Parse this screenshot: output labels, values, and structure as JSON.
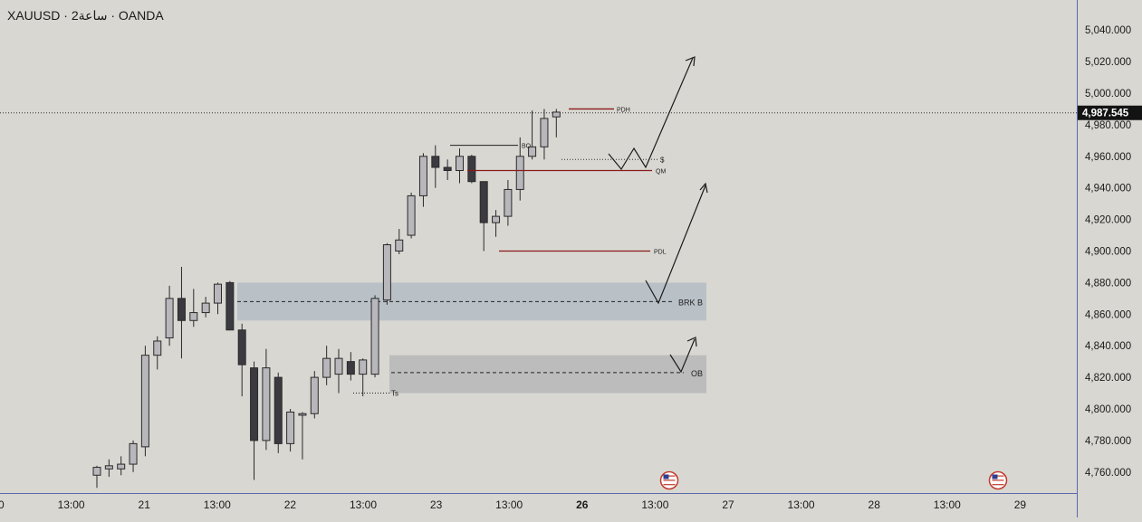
{
  "header": {
    "symbol": "XAUUSD",
    "interval": "2ساعة",
    "broker": "OANDA",
    "sep": " · "
  },
  "price_axis": {
    "ticks": [
      "5,040.000",
      "5,020.000",
      "5,000.000",
      "4,980.000",
      "4,960.000",
      "4,940.000",
      "4,920.000",
      "4,900.000",
      "4,880.000",
      "4,860.000",
      "4,840.000",
      "4,820.000",
      "4,800.000",
      "4,780.000",
      "4,760.000"
    ],
    "last_price_label": "4,987.545"
  },
  "time_axis": {
    "labels": [
      "0",
      "13:00",
      "21",
      "13:00",
      "22",
      "13:00",
      "23",
      "13:00",
      "26",
      "13:00",
      "27",
      "13:00",
      "28",
      "13:00",
      "29"
    ]
  },
  "annotations": {
    "pdh": "PDH",
    "bo": "BO",
    "dollar": "$",
    "qm": "QM",
    "pdl": "PDL",
    "brk": "BRK B",
    "ts": "Ts",
    "ob": "OB"
  },
  "colors": {
    "background": "#d8d7d2",
    "bull_candle": "#b8b8bc",
    "bear_candle": "#3a3a40",
    "zone_brk": "#b9c1c7",
    "zone_ob": "#bcbcbc",
    "level_line": "#8b1a1a",
    "axis": "#5a6aa8"
  },
  "chart_data": {
    "type": "candlestick",
    "symbol": "XAUUSD",
    "ylim": [
      4755,
      5058
    ],
    "candles": [
      {
        "o": 4758,
        "h": 4764,
        "l": 4750,
        "c": 4763
      },
      {
        "o": 4762,
        "h": 4768,
        "l": 4757,
        "c": 4764
      },
      {
        "o": 4762,
        "h": 4770,
        "l": 4758,
        "c": 4765
      },
      {
        "o": 4765,
        "h": 4780,
        "l": 4760,
        "c": 4778
      },
      {
        "o": 4776,
        "h": 4840,
        "l": 4770,
        "c": 4834
      },
      {
        "o": 4834,
        "h": 4846,
        "l": 4825,
        "c": 4843
      },
      {
        "o": 4845,
        "h": 4878,
        "l": 4840,
        "c": 4870
      },
      {
        "o": 4870,
        "h": 4890,
        "l": 4832,
        "c": 4856
      },
      {
        "o": 4856,
        "h": 4876,
        "l": 4852,
        "c": 4861
      },
      {
        "o": 4861,
        "h": 4871,
        "l": 4858,
        "c": 4867
      },
      {
        "o": 4867,
        "h": 4880,
        "l": 4860,
        "c": 4879
      },
      {
        "o": 4880,
        "h": 4881,
        "l": 4852,
        "c": 4850
      },
      {
        "o": 4850,
        "h": 4854,
        "l": 4808,
        "c": 4828
      },
      {
        "o": 4826,
        "h": 4830,
        "l": 4755,
        "c": 4780
      },
      {
        "o": 4780,
        "h": 4838,
        "l": 4774,
        "c": 4826
      },
      {
        "o": 4820,
        "h": 4823,
        "l": 4772,
        "c": 4778
      },
      {
        "o": 4778,
        "h": 4800,
        "l": 4773,
        "c": 4798
      },
      {
        "o": 4796,
        "h": 4798,
        "l": 4768,
        "c": 4797
      },
      {
        "o": 4797,
        "h": 4824,
        "l": 4794,
        "c": 4820
      },
      {
        "o": 4820,
        "h": 4840,
        "l": 4815,
        "c": 4832
      },
      {
        "o": 4822,
        "h": 4838,
        "l": 4810,
        "c": 4832
      },
      {
        "o": 4830,
        "h": 4836,
        "l": 4818,
        "c": 4822
      },
      {
        "o": 4822,
        "h": 4832,
        "l": 4808,
        "c": 4831
      },
      {
        "o": 4822,
        "h": 4872,
        "l": 4820,
        "c": 4870
      },
      {
        "o": 4869,
        "h": 4905,
        "l": 4866,
        "c": 4904
      },
      {
        "o": 4900,
        "h": 4914,
        "l": 4898,
        "c": 4907
      },
      {
        "o": 4910,
        "h": 4937,
        "l": 4908,
        "c": 4935
      },
      {
        "o": 4935,
        "h": 4962,
        "l": 4928,
        "c": 4960
      },
      {
        "o": 4960,
        "h": 4967,
        "l": 4940,
        "c": 4953
      },
      {
        "o": 4953,
        "h": 4958,
        "l": 4945,
        "c": 4951
      },
      {
        "o": 4951,
        "h": 4965,
        "l": 4943,
        "c": 4960
      },
      {
        "o": 4960,
        "h": 4961,
        "l": 4943,
        "c": 4944
      },
      {
        "o": 4944,
        "h": 4944,
        "l": 4900,
        "c": 4918
      },
      {
        "o": 4918,
        "h": 4926,
        "l": 4909,
        "c": 4922
      },
      {
        "o": 4922,
        "h": 4945,
        "l": 4916,
        "c": 4939
      },
      {
        "o": 4939,
        "h": 4972,
        "l": 4932,
        "c": 4960
      },
      {
        "o": 4960,
        "h": 4989,
        "l": 4958,
        "c": 4966
      },
      {
        "o": 4966,
        "h": 4990,
        "l": 4958,
        "c": 4984
      },
      {
        "o": 4985,
        "h": 4990,
        "l": 4972,
        "c": 4988
      }
    ],
    "levels": [
      {
        "name": "PDH",
        "value": 4990
      },
      {
        "name": "BO",
        "value": 4967
      },
      {
        "name": "$",
        "value": 4958
      },
      {
        "name": "QM",
        "value": 4951
      },
      {
        "name": "PDL",
        "value": 4900
      },
      {
        "name": "BRK B",
        "value": 4868
      },
      {
        "name": "Ts",
        "value": 4810
      },
      {
        "name": "OB",
        "value": 4823
      }
    ],
    "zones": [
      {
        "name": "BRK B",
        "from": 4856,
        "to": 4880
      },
      {
        "name": "OB",
        "from": 4810,
        "to": 4834
      }
    ],
    "last_price": 4987.545
  }
}
